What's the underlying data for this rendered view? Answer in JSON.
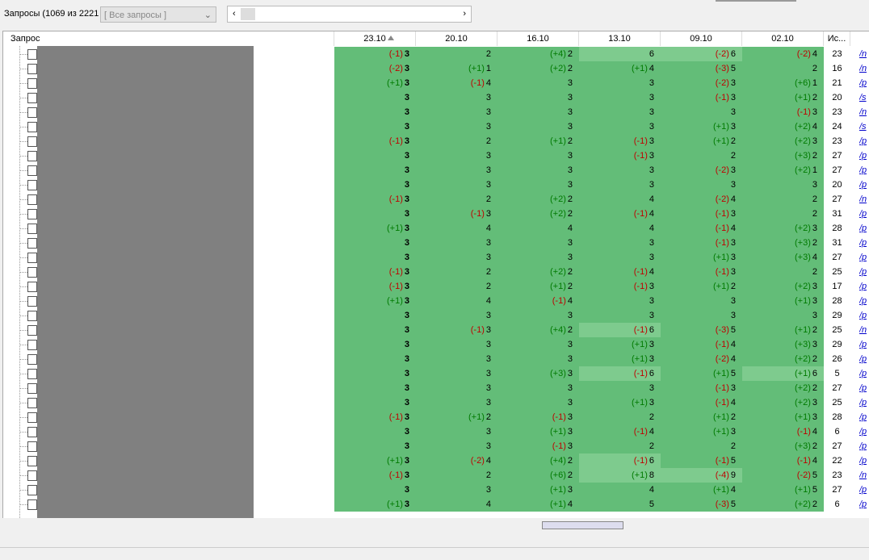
{
  "toolbar": {
    "label": "Запросы (1069 из 2221",
    "filter": "[ Все запросы ]"
  },
  "table": {
    "columns": [
      "Запрос",
      "23.10",
      "20.10",
      "16.10",
      "13.10",
      "09.10",
      "02.10",
      "Ис..."
    ],
    "rows": [
      {
        "cells": [
          [
            "(-1)",
            "3"
          ],
          [
            "2"
          ],
          [
            "(+4)",
            "2"
          ],
          [
            "6"
          ],
          [
            "(-2)",
            "6"
          ],
          [
            "(-2)",
            "4"
          ]
        ],
        "n": "23",
        "link": "/n"
      },
      {
        "cells": [
          [
            "(-2)",
            "3"
          ],
          [
            "(+1)",
            "1"
          ],
          [
            "(+2)",
            "2"
          ],
          [
            "(+1)",
            "4"
          ],
          [
            "(-3)",
            "5"
          ],
          [
            "2"
          ]
        ],
        "n": "16",
        "link": "/n"
      },
      {
        "cells": [
          [
            "(+1)",
            "3"
          ],
          [
            "(-1)",
            "4"
          ],
          [
            "3"
          ],
          [
            "3"
          ],
          [
            "(-2)",
            "3"
          ],
          [
            "(+6)",
            "1"
          ]
        ],
        "n": "21",
        "link": "/p"
      },
      {
        "cells": [
          [
            "3"
          ],
          [
            "3"
          ],
          [
            "3"
          ],
          [
            "3"
          ],
          [
            "(-1)",
            "3"
          ],
          [
            "(+1)",
            "2"
          ]
        ],
        "n": "20",
        "link": "/s"
      },
      {
        "cells": [
          [
            "3"
          ],
          [
            "3"
          ],
          [
            "3"
          ],
          [
            "3"
          ],
          [
            "3"
          ],
          [
            "(-1)",
            "3"
          ]
        ],
        "n": "23",
        "link": "/n"
      },
      {
        "cells": [
          [
            "3"
          ],
          [
            "3"
          ],
          [
            "3"
          ],
          [
            "3"
          ],
          [
            "(+1)",
            "3"
          ],
          [
            "(+2)",
            "4"
          ]
        ],
        "n": "24",
        "link": "/s"
      },
      {
        "cells": [
          [
            "(-1)",
            "3"
          ],
          [
            "2"
          ],
          [
            "(+1)",
            "2"
          ],
          [
            "(-1)",
            "3"
          ],
          [
            "(+1)",
            "2"
          ],
          [
            "(+2)",
            "3"
          ]
        ],
        "n": "23",
        "link": "/p"
      },
      {
        "cells": [
          [
            "3"
          ],
          [
            "3"
          ],
          [
            "3"
          ],
          [
            "(-1)",
            "3"
          ],
          [
            "2"
          ],
          [
            "(+3)",
            "2"
          ]
        ],
        "n": "27",
        "link": "/p"
      },
      {
        "cells": [
          [
            "3"
          ],
          [
            "3"
          ],
          [
            "3"
          ],
          [
            "3"
          ],
          [
            "(-2)",
            "3"
          ],
          [
            "(+2)",
            "1"
          ]
        ],
        "n": "27",
        "link": "/p"
      },
      {
        "cells": [
          [
            "3"
          ],
          [
            "3"
          ],
          [
            "3"
          ],
          [
            "3"
          ],
          [
            "3"
          ],
          [
            "3"
          ]
        ],
        "n": "20",
        "link": "/p"
      },
      {
        "cells": [
          [
            "(-1)",
            "3"
          ],
          [
            "2"
          ],
          [
            "(+2)",
            "2"
          ],
          [
            "4"
          ],
          [
            "(-2)",
            "4"
          ],
          [
            "2"
          ]
        ],
        "n": "27",
        "link": "/n"
      },
      {
        "cells": [
          [
            "3"
          ],
          [
            "(-1)",
            "3"
          ],
          [
            "(+2)",
            "2"
          ],
          [
            "(-1)",
            "4"
          ],
          [
            "(-1)",
            "3"
          ],
          [
            "2"
          ]
        ],
        "n": "31",
        "link": "/p"
      },
      {
        "cells": [
          [
            "(+1)",
            "3"
          ],
          [
            "4"
          ],
          [
            "4"
          ],
          [
            "4"
          ],
          [
            "(-1)",
            "4"
          ],
          [
            "(+2)",
            "3"
          ]
        ],
        "n": "28",
        "link": "/p"
      },
      {
        "cells": [
          [
            "3"
          ],
          [
            "3"
          ],
          [
            "3"
          ],
          [
            "3"
          ],
          [
            "(-1)",
            "3"
          ],
          [
            "(+3)",
            "2"
          ]
        ],
        "n": "31",
        "link": "/p"
      },
      {
        "cells": [
          [
            "3"
          ],
          [
            "3"
          ],
          [
            "3"
          ],
          [
            "3"
          ],
          [
            "(+1)",
            "3"
          ],
          [
            "(+3)",
            "4"
          ]
        ],
        "n": "27",
        "link": "/p"
      },
      {
        "cells": [
          [
            "(-1)",
            "3"
          ],
          [
            "2"
          ],
          [
            "(+2)",
            "2"
          ],
          [
            "(-1)",
            "4"
          ],
          [
            "(-1)",
            "3"
          ],
          [
            "2"
          ]
        ],
        "n": "25",
        "link": "/p"
      },
      {
        "cells": [
          [
            "(-1)",
            "3"
          ],
          [
            "2"
          ],
          [
            "(+1)",
            "2"
          ],
          [
            "(-1)",
            "3"
          ],
          [
            "(+1)",
            "2"
          ],
          [
            "(+2)",
            "3"
          ]
        ],
        "n": "17",
        "link": "/p"
      },
      {
        "cells": [
          [
            "(+1)",
            "3"
          ],
          [
            "4"
          ],
          [
            "(-1)",
            "4"
          ],
          [
            "3"
          ],
          [
            "3"
          ],
          [
            "(+1)",
            "3"
          ]
        ],
        "n": "28",
        "link": "/p"
      },
      {
        "cells": [
          [
            "3"
          ],
          [
            "3"
          ],
          [
            "3"
          ],
          [
            "3"
          ],
          [
            "3"
          ],
          [
            "3"
          ]
        ],
        "n": "29",
        "link": "/p"
      },
      {
        "cells": [
          [
            "3"
          ],
          [
            "(-1)",
            "3"
          ],
          [
            "(+4)",
            "2"
          ],
          [
            "(-1)",
            "6"
          ],
          [
            "(-3)",
            "5"
          ],
          [
            "(+1)",
            "2"
          ]
        ],
        "n": "25",
        "link": "/n"
      },
      {
        "cells": [
          [
            "3"
          ],
          [
            "3"
          ],
          [
            "3"
          ],
          [
            "(+1)",
            "3"
          ],
          [
            "(-1)",
            "4"
          ],
          [
            "(+3)",
            "3"
          ]
        ],
        "n": "29",
        "link": "/p"
      },
      {
        "cells": [
          [
            "3"
          ],
          [
            "3"
          ],
          [
            "3"
          ],
          [
            "(+1)",
            "3"
          ],
          [
            "(-2)",
            "4"
          ],
          [
            "(+2)",
            "2"
          ]
        ],
        "n": "26",
        "link": "/p"
      },
      {
        "cells": [
          [
            "3"
          ],
          [
            "3"
          ],
          [
            "(+3)",
            "3"
          ],
          [
            "(-1)",
            "6"
          ],
          [
            "(+1)",
            "5"
          ],
          [
            "(+1)",
            "6"
          ]
        ],
        "n": "5",
        "link": "/p"
      },
      {
        "cells": [
          [
            "3"
          ],
          [
            "3"
          ],
          [
            "3"
          ],
          [
            "3"
          ],
          [
            "(-1)",
            "3"
          ],
          [
            "(+2)",
            "2"
          ]
        ],
        "n": "27",
        "link": "/p"
      },
      {
        "cells": [
          [
            "3"
          ],
          [
            "3"
          ],
          [
            "3"
          ],
          [
            "(+1)",
            "3"
          ],
          [
            "(-1)",
            "4"
          ],
          [
            "(+2)",
            "3"
          ]
        ],
        "n": "25",
        "link": "/p"
      },
      {
        "cells": [
          [
            "(-1)",
            "3"
          ],
          [
            "(+1)",
            "2"
          ],
          [
            "(-1)",
            "3"
          ],
          [
            "2"
          ],
          [
            "(+1)",
            "2"
          ],
          [
            "(+1)",
            "3"
          ]
        ],
        "n": "28",
        "link": "/p"
      },
      {
        "cells": [
          [
            "3"
          ],
          [
            "3"
          ],
          [
            "(+1)",
            "3"
          ],
          [
            "(-1)",
            "4"
          ],
          [
            "(+1)",
            "3"
          ],
          [
            "(-1)",
            "4"
          ]
        ],
        "n": "6",
        "link": "/p"
      },
      {
        "cells": [
          [
            "3"
          ],
          [
            "3"
          ],
          [
            "(-1)",
            "3"
          ],
          [
            "2"
          ],
          [
            "2"
          ],
          [
            "(+3)",
            "2"
          ]
        ],
        "n": "27",
        "link": "/p"
      },
      {
        "cells": [
          [
            "(+1)",
            "3"
          ],
          [
            "(-2)",
            "4"
          ],
          [
            "(+4)",
            "2"
          ],
          [
            "(-1)",
            "6"
          ],
          [
            "(-1)",
            "5"
          ],
          [
            "(-1)",
            "4"
          ]
        ],
        "n": "22",
        "link": "/p"
      },
      {
        "cells": [
          [
            "(-1)",
            "3"
          ],
          [
            "2"
          ],
          [
            "(+6)",
            "2"
          ],
          [
            "(+1)",
            "8"
          ],
          [
            "(-4)",
            "9"
          ],
          [
            "(-2)",
            "5"
          ]
        ],
        "n": "23",
        "link": "/n"
      },
      {
        "cells": [
          [
            "3"
          ],
          [
            "3"
          ],
          [
            "(+1)",
            "3"
          ],
          [
            "4"
          ],
          [
            "(+1)",
            "4"
          ],
          [
            "(+1)",
            "5"
          ]
        ],
        "n": "27",
        "link": "/p"
      },
      {
        "cells": [
          [
            "(+1)",
            "3"
          ],
          [
            "4"
          ],
          [
            "(+1)",
            "4"
          ],
          [
            "5"
          ],
          [
            "(-3)",
            "5"
          ],
          [
            "(+2)",
            "2"
          ]
        ],
        "n": "6",
        "link": "/p"
      }
    ]
  }
}
